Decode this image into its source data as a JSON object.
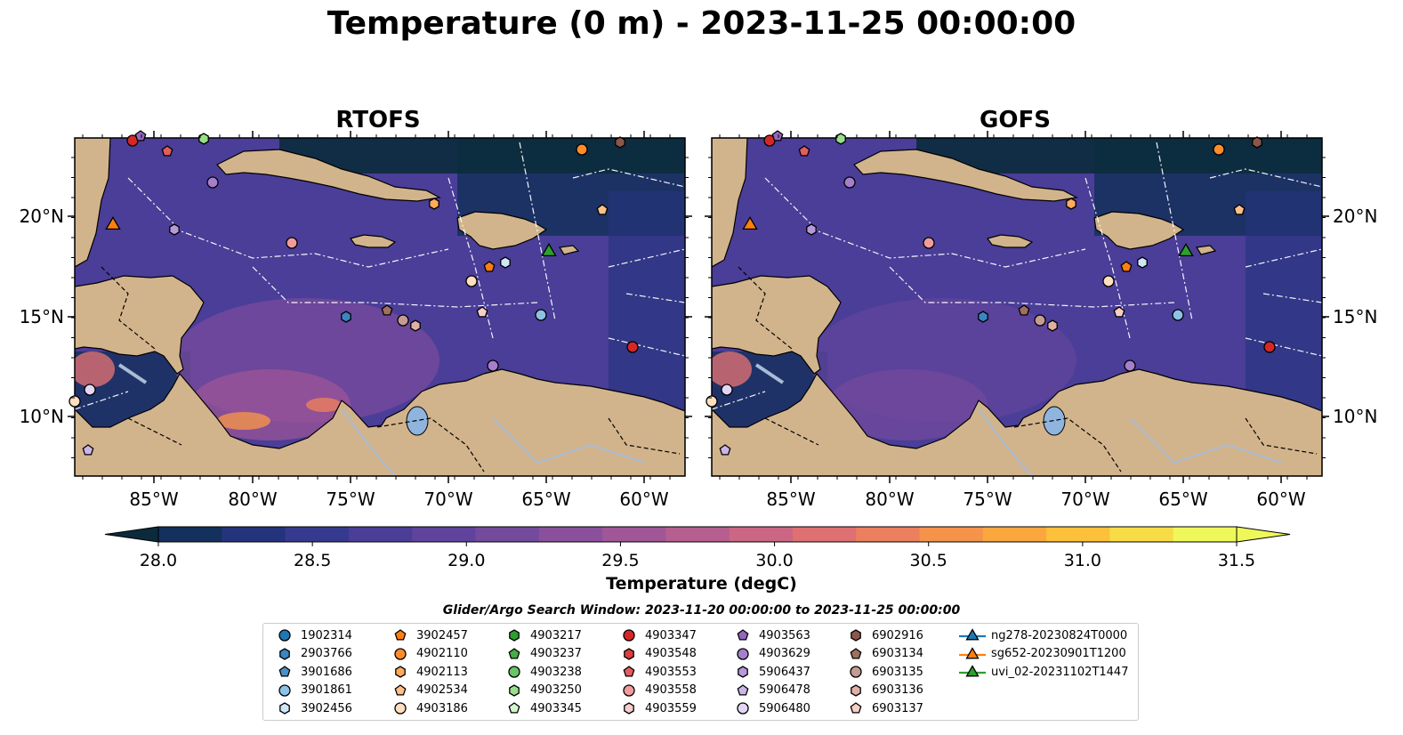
{
  "title": "Temperature (0 m) - 2023-11-25 00:00:00",
  "panels": [
    {
      "title": "RTOFS",
      "lon_ticks": [
        "85°W",
        "80°W",
        "75°W",
        "70°W",
        "65°W",
        "60°W"
      ],
      "lat_ticks": [
        "20°N",
        "15°N",
        "10°N"
      ]
    },
    {
      "title": "GOFS",
      "lon_ticks": [
        "85°W",
        "80°W",
        "75°W",
        "70°W",
        "65°W",
        "60°W"
      ],
      "lat_ticks": [
        "20°N",
        "15°N",
        "10°N"
      ]
    }
  ],
  "colorbar": {
    "label": "Temperature (degC)",
    "tick_labels": [
      "28.0",
      "28.5",
      "29.0",
      "29.5",
      "30.0",
      "30.5",
      "31.0",
      "31.5"
    ],
    "colors": [
      "#0b2b3c",
      "#14305c",
      "#24347c",
      "#363a8e",
      "#4a3e98",
      "#5f439c",
      "#744a9c",
      "#8a509b",
      "#a05697",
      "#b65e8f",
      "#cb6684",
      "#de7072",
      "#ec805e",
      "#f5934b",
      "#faa83e",
      "#fdc03b",
      "#f8dc45",
      "#eef85a"
    ]
  },
  "search_window": "Glider/Argo Search Window: 2023-11-20 00:00:00 to 2023-11-25 00:00:00",
  "legend": [
    {
      "label": "1902314",
      "marker": "circle",
      "color": "#1f77b4"
    },
    {
      "label": "2903766",
      "marker": "hexagon",
      "color": "#3a86c0"
    },
    {
      "label": "3901686",
      "marker": "pentagon",
      "color": "#4a90c9"
    },
    {
      "label": "3901861",
      "marker": "circle",
      "color": "#8ec1e6"
    },
    {
      "label": "3902456",
      "marker": "hexagon",
      "color": "#cfe6f7"
    },
    {
      "label": "3902457",
      "marker": "pentagon",
      "color": "#ff7f0e"
    },
    {
      "label": "4902110",
      "marker": "circle",
      "color": "#ff8c2a"
    },
    {
      "label": "4902113",
      "marker": "hexagon",
      "color": "#ffaa5c"
    },
    {
      "label": "4902534",
      "marker": "pentagon",
      "color": "#ffc088"
    },
    {
      "label": "4903186",
      "marker": "circle",
      "color": "#ffdfbf"
    },
    {
      "label": "4903217",
      "marker": "hexagon",
      "color": "#2ca02c"
    },
    {
      "label": "4903237",
      "marker": "pentagon",
      "color": "#44ad44"
    },
    {
      "label": "4903238",
      "marker": "circle",
      "color": "#67c467"
    },
    {
      "label": "4903250",
      "marker": "hexagon",
      "color": "#98df8a"
    },
    {
      "label": "4903345",
      "marker": "pentagon",
      "color": "#d4f5cc"
    },
    {
      "label": "4903347",
      "marker": "circle",
      "color": "#d62728"
    },
    {
      "label": "4903548",
      "marker": "hexagon",
      "color": "#dc3d3e"
    },
    {
      "label": "4903553",
      "marker": "pentagon",
      "color": "#e35d5e"
    },
    {
      "label": "4903558",
      "marker": "circle",
      "color": "#f19c9c"
    },
    {
      "label": "4903559",
      "marker": "hexagon",
      "color": "#f8cccc"
    },
    {
      "label": "4903563",
      "marker": "pentagon",
      "color": "#9467bd"
    },
    {
      "label": "4903629",
      "marker": "circle",
      "color": "#a67fcc"
    },
    {
      "label": "5906437",
      "marker": "hexagon",
      "color": "#b799da"
    },
    {
      "label": "5906478",
      "marker": "pentagon",
      "color": "#cbb5e8"
    },
    {
      "label": "5906480",
      "marker": "circle",
      "color": "#e3d6f5"
    },
    {
      "label": "6902916",
      "marker": "hexagon",
      "color": "#8c564b"
    },
    {
      "label": "6903134",
      "marker": "pentagon",
      "color": "#a0705f"
    },
    {
      "label": "6903135",
      "marker": "circle",
      "color": "#c49c94"
    },
    {
      "label": "6903136",
      "marker": "hexagon",
      "color": "#e0b0a5"
    },
    {
      "label": "6903137",
      "marker": "pentagon",
      "color": "#f7d0c5"
    },
    {
      "label": "ng278-20230824T0000",
      "marker": "triangle",
      "color": "#1f77b4"
    },
    {
      "label": "sg652-20230901T1200",
      "marker": "triangle",
      "color": "#ff7f0e"
    },
    {
      "label": "uvi_02-20231102T1447",
      "marker": "triangle",
      "color": "#2ca02c"
    }
  ],
  "colors": {
    "land": "#d2b48c",
    "ocean_base": "#4a3e98",
    "lake": "#8fb4dd",
    "river": "#a9bcd6"
  }
}
